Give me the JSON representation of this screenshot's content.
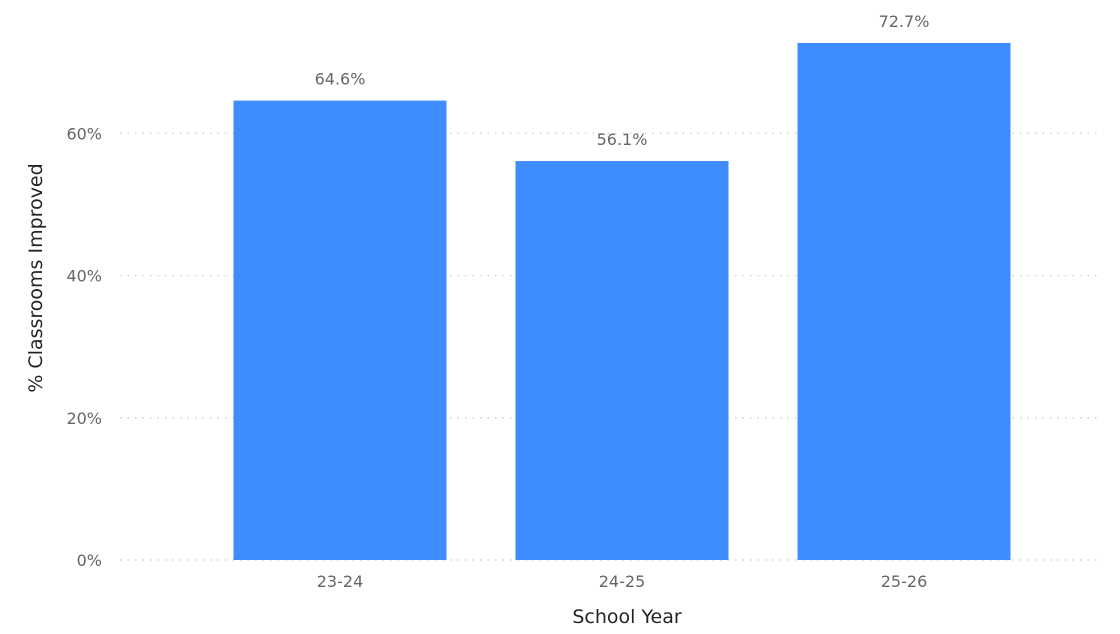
{
  "chart_data": {
    "type": "bar",
    "title": "",
    "xlabel": "School Year",
    "ylabel": "% Classrooms Improved",
    "categories": [
      "23-24",
      "24-25",
      "25-26"
    ],
    "values": [
      64.6,
      56.1,
      72.7
    ],
    "data_labels": [
      "64.6%",
      "56.1%",
      "72.7%"
    ],
    "ylim": [
      0,
      72.7
    ],
    "yticks": [
      0,
      20,
      40,
      60
    ],
    "ytick_labels": [
      "0%",
      "20%",
      "40%",
      "60%"
    ],
    "grid": "horizontal-dotted",
    "legend": "none",
    "colors": {
      "bar": "#3f8cff",
      "gridline": "#c8c8c8",
      "tick_text": "#666666",
      "axis_title": "#252423"
    }
  }
}
